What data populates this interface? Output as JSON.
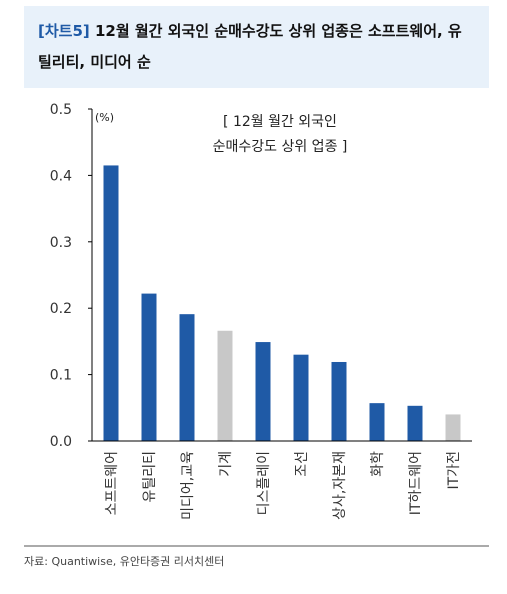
{
  "header": {
    "tag": "[차트5]",
    "title": "12월 월간 외국인 순매수강도 상위 업종은 소프트웨어, 유틸리티, 미디어 순"
  },
  "source": "자료: Quantiwise, 유안타증권 리서치센터",
  "chart_data": {
    "type": "bar",
    "title": "[ 12월 월간 외국인 순매수강도 상위 업종 ]",
    "title_lines": [
      "[ 12월 월간 외국인",
      "순매수강도 상위 업종 ]"
    ],
    "unit_label": "(%)",
    "xlabel": "",
    "ylabel": "",
    "ylim": [
      0,
      0.5
    ],
    "yticks": [
      "0.0",
      "0.1",
      "0.2",
      "0.3",
      "0.4",
      "0.5"
    ],
    "grid": false,
    "categories": [
      "소프트웨어",
      "유틸리티",
      "미디어,교육",
      "기계",
      "디스플레이",
      "조선",
      "상사,자본재",
      "화학",
      "IT하드웨어",
      "IT가전"
    ],
    "values": [
      0.415,
      0.222,
      0.191,
      0.166,
      0.149,
      0.13,
      0.119,
      0.057,
      0.053,
      0.04
    ],
    "colors": [
      "#1f5aa6",
      "#1f5aa6",
      "#1f5aa6",
      "#c8c8c8",
      "#1f5aa6",
      "#1f5aa6",
      "#1f5aa6",
      "#1f5aa6",
      "#1f5aa6",
      "#c8c8c8"
    ]
  }
}
